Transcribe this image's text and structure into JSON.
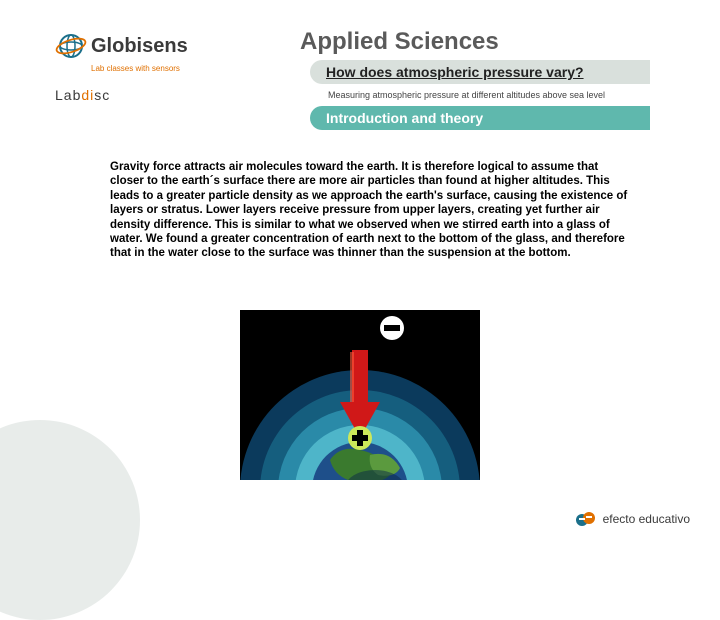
{
  "header": {
    "logo_name": "Globisens",
    "tagline": "Lab classes with sensors",
    "labdisc": "Labdisc",
    "brand_title": "Applied Sciences",
    "question": "How does atmospheric pressure vary?",
    "subtitle": "Measuring atmospheric pressure at different altitudes above sea level",
    "section": "Introduction and theory"
  },
  "body": {
    "text": "Gravity force attracts air molecules toward the earth. It is therefore logical to assume that closer to the earth´s surface there are more air particles than found at higher altitudes. This leads to a greater particle density as we approach the earth's surface, causing the existence of layers or stratus. Lower layers receive pressure from upper layers, creating yet further air density difference. This is similar to what we observed when we stirred earth into a glass of water. We found a greater concentration of earth next to the bottom of the glass, and therefore that in the water close to the surface was thinner than the suspension at the bottom."
  },
  "illustration": {
    "bg_color": "#000000",
    "layers": [
      {
        "color": "#0b3a5c",
        "r": 120
      },
      {
        "color": "#155e7e",
        "r": 100
      },
      {
        "color": "#2a8aa8",
        "r": 82
      },
      {
        "color": "#4eb5c9",
        "r": 65
      }
    ],
    "earth": {
      "water": "#1e4f8a",
      "land1": "#3a7a2e",
      "land2": "#5b9a3e",
      "shadow": "#0a2845"
    },
    "arrow_color": "#d01818",
    "minus_bg": "#ffffff",
    "plus_bg": "#cde85a"
  },
  "footer": {
    "text": "efecto educativo"
  },
  "colors": {
    "teal": "#5fb8ad",
    "grey_bar": "#d9e0dc",
    "orange": "#e07000"
  }
}
